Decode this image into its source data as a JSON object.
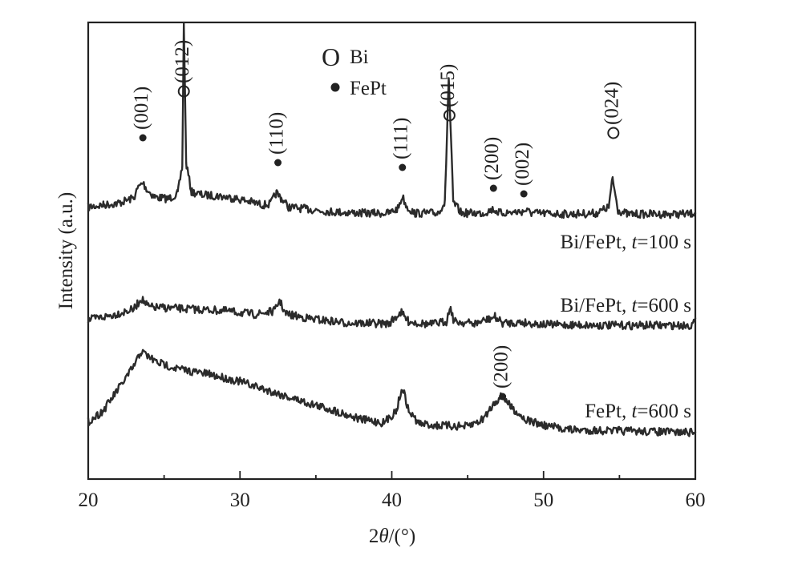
{
  "chart_data": {
    "type": "line",
    "title": "",
    "xlabel_prefix": "2",
    "xlabel_symbol": "θ",
    "xlabel_unit": "/(°)",
    "ylabel": "Intensity (a.u.)",
    "xlim": [
      20,
      60
    ],
    "xticks": [
      "20",
      "30",
      "40",
      "50",
      "60"
    ],
    "y_axis_ticks": "none",
    "legend": {
      "placement": "top-center",
      "entries": [
        {
          "marker": "open-circle",
          "symbol": "O",
          "label": "Bi"
        },
        {
          "marker": "filled-circle",
          "label": "FePt"
        }
      ]
    },
    "series": [
      {
        "label_prefix": "Bi/FePt, ",
        "label_var": "t",
        "label_suffix": "=100 s",
        "points": [
          [
            20.0,
            0.25
          ],
          [
            21.0,
            0.32
          ],
          [
            22.0,
            0.38
          ],
          [
            23.0,
            0.55
          ],
          [
            23.3,
            0.9
          ],
          [
            23.6,
            1.05
          ],
          [
            23.9,
            0.8
          ],
          [
            24.4,
            0.58
          ],
          [
            25.3,
            0.52
          ],
          [
            25.9,
            0.7
          ],
          [
            26.2,
            1.6
          ],
          [
            26.3,
            6.5
          ],
          [
            26.45,
            1.7
          ],
          [
            26.8,
            0.75
          ],
          [
            27.5,
            0.65
          ],
          [
            28.5,
            0.62
          ],
          [
            29.5,
            0.55
          ],
          [
            30.5,
            0.45
          ],
          [
            31.5,
            0.32
          ],
          [
            32.0,
            0.35
          ],
          [
            32.4,
            0.72
          ],
          [
            32.7,
            0.55
          ],
          [
            33.2,
            0.25
          ],
          [
            34.5,
            0.18
          ],
          [
            36.0,
            0.1
          ],
          [
            38.0,
            0.05
          ],
          [
            39.8,
            0.05
          ],
          [
            40.4,
            0.2
          ],
          [
            40.7,
            0.6
          ],
          [
            41.0,
            0.25
          ],
          [
            41.5,
            0.05
          ],
          [
            43.0,
            0.05
          ],
          [
            43.5,
            0.4
          ],
          [
            43.75,
            4.5
          ],
          [
            44.05,
            0.4
          ],
          [
            44.6,
            0.05
          ],
          [
            46.0,
            0.05
          ],
          [
            46.7,
            0.18
          ],
          [
            47.1,
            0.05
          ],
          [
            48.6,
            0.1
          ],
          [
            48.8,
            0.15
          ],
          [
            49.2,
            0.05
          ],
          [
            52.0,
            0.02
          ],
          [
            53.5,
            0.05
          ],
          [
            54.3,
            0.25
          ],
          [
            54.55,
            1.2
          ],
          [
            54.9,
            0.15
          ],
          [
            55.5,
            0.02
          ],
          [
            59.7,
            0.02
          ],
          [
            60.0,
            0.1
          ]
        ]
      },
      {
        "label_prefix": "Bi/FePt, ",
        "label_var": "t",
        "label_suffix": "=600 s",
        "points": [
          [
            20.0,
            0.2
          ],
          [
            21.5,
            0.35
          ],
          [
            23.0,
            0.55
          ],
          [
            23.5,
            0.9
          ],
          [
            24.0,
            0.62
          ],
          [
            25.0,
            0.6
          ],
          [
            27.0,
            0.55
          ],
          [
            29.0,
            0.5
          ],
          [
            31.0,
            0.38
          ],
          [
            32.3,
            0.5
          ],
          [
            32.6,
            0.85
          ],
          [
            33.0,
            0.4
          ],
          [
            34.5,
            0.25
          ],
          [
            37.0,
            0.1
          ],
          [
            39.8,
            0.08
          ],
          [
            40.6,
            0.45
          ],
          [
            41.1,
            0.15
          ],
          [
            42.5,
            0.05
          ],
          [
            43.6,
            0.15
          ],
          [
            43.85,
            0.62
          ],
          [
            44.1,
            0.15
          ],
          [
            45.5,
            0.08
          ],
          [
            46.8,
            0.3
          ],
          [
            47.3,
            0.1
          ],
          [
            48.6,
            0.12
          ],
          [
            50.0,
            0.05
          ],
          [
            54.5,
            0.02
          ],
          [
            59.7,
            0.02
          ],
          [
            60.0,
            0.15
          ]
        ]
      },
      {
        "label_prefix": "FePt, ",
        "label_var": "t",
        "label_suffix": "=600 s",
        "points": [
          [
            20.0,
            0.12
          ],
          [
            21.0,
            0.25
          ],
          [
            22.0,
            0.5
          ],
          [
            23.0,
            0.75
          ],
          [
            23.5,
            0.92
          ],
          [
            24.5,
            0.8
          ],
          [
            26.0,
            0.72
          ],
          [
            28.0,
            0.66
          ],
          [
            30.0,
            0.58
          ],
          [
            32.0,
            0.47
          ],
          [
            34.0,
            0.36
          ],
          [
            36.0,
            0.26
          ],
          [
            38.0,
            0.15
          ],
          [
            39.5,
            0.11
          ],
          [
            40.3,
            0.25
          ],
          [
            40.7,
            0.52
          ],
          [
            41.1,
            0.25
          ],
          [
            41.8,
            0.1
          ],
          [
            43.0,
            0.08
          ],
          [
            45.0,
            0.07
          ],
          [
            46.0,
            0.15
          ],
          [
            46.8,
            0.35
          ],
          [
            47.3,
            0.42
          ],
          [
            47.8,
            0.3
          ],
          [
            48.8,
            0.15
          ],
          [
            50.0,
            0.08
          ],
          [
            52.0,
            0.03
          ],
          [
            55.0,
            0.02
          ],
          [
            60.0,
            0.0
          ]
        ]
      }
    ],
    "annotations": [
      {
        "text": "(001)",
        "marker": "filled",
        "x": 23.6,
        "series": 0
      },
      {
        "text": "(012)",
        "marker": "open",
        "x": 26.3,
        "series": 0
      },
      {
        "text": "(110)",
        "marker": "filled",
        "x": 32.5,
        "series": 0
      },
      {
        "text": "(111)",
        "marker": "filled",
        "x": 40.7,
        "series": 0
      },
      {
        "text": "(015)",
        "marker": "open",
        "x": 43.8,
        "series": 0
      },
      {
        "text": "(200)",
        "marker": "filled",
        "x": 46.7,
        "series": 0
      },
      {
        "text": "(002)",
        "marker": "filled",
        "x": 48.7,
        "series": 0
      },
      {
        "text": "(024)",
        "marker": "open",
        "x": 54.6,
        "series": 0
      },
      {
        "text": "(200)",
        "marker": "filled",
        "x": 47.3,
        "series": 2
      }
    ],
    "colors": {
      "line": "#2b2b2b",
      "axes": "#222222",
      "background": "#ffffff"
    }
  }
}
